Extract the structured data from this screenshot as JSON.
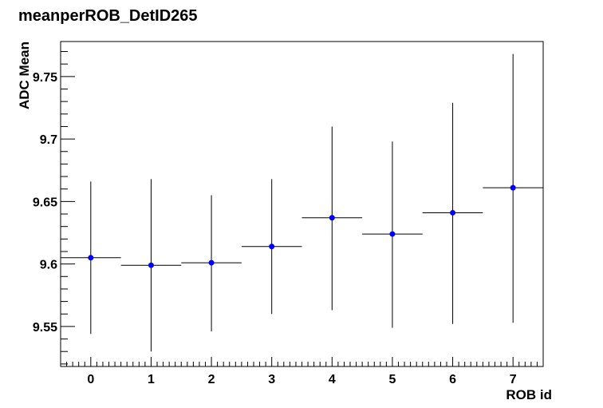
{
  "chart_data": {
    "type": "scatter",
    "title": "meanperROB_DetID265",
    "xlabel": "ROB id",
    "ylabel": "ADC Mean",
    "xlim": [
      -0.5,
      7.5
    ],
    "ylim": [
      9.518,
      9.778
    ],
    "x_ticks": [
      0,
      1,
      2,
      3,
      4,
      5,
      6,
      7
    ],
    "y_ticks": [
      9.55,
      9.6,
      9.65,
      9.7,
      9.75
    ],
    "y_tick_labels": [
      "9.55",
      "9.6",
      "9.65",
      "9.7",
      "9.75"
    ],
    "marker_color": "#0000ff",
    "grid": false,
    "series": [
      {
        "points": [
          {
            "x": 0,
            "y": 9.605,
            "x_err": 0.5,
            "y_low": 9.544,
            "y_high": 9.666
          },
          {
            "x": 1,
            "y": 9.599,
            "x_err": 0.5,
            "y_low": 9.53,
            "y_high": 9.668
          },
          {
            "x": 2,
            "y": 9.601,
            "x_err": 0.5,
            "y_low": 9.546,
            "y_high": 9.655
          },
          {
            "x": 3,
            "y": 9.614,
            "x_err": 0.5,
            "y_low": 9.56,
            "y_high": 9.668
          },
          {
            "x": 4,
            "y": 9.637,
            "x_err": 0.5,
            "y_low": 9.563,
            "y_high": 9.71
          },
          {
            "x": 5,
            "y": 9.624,
            "x_err": 0.5,
            "y_low": 9.549,
            "y_high": 9.698
          },
          {
            "x": 6,
            "y": 9.641,
            "x_err": 0.5,
            "y_low": 9.552,
            "y_high": 9.729
          },
          {
            "x": 7,
            "y": 9.661,
            "x_err": 0.5,
            "y_low": 9.553,
            "y_high": 9.768
          }
        ]
      }
    ]
  }
}
